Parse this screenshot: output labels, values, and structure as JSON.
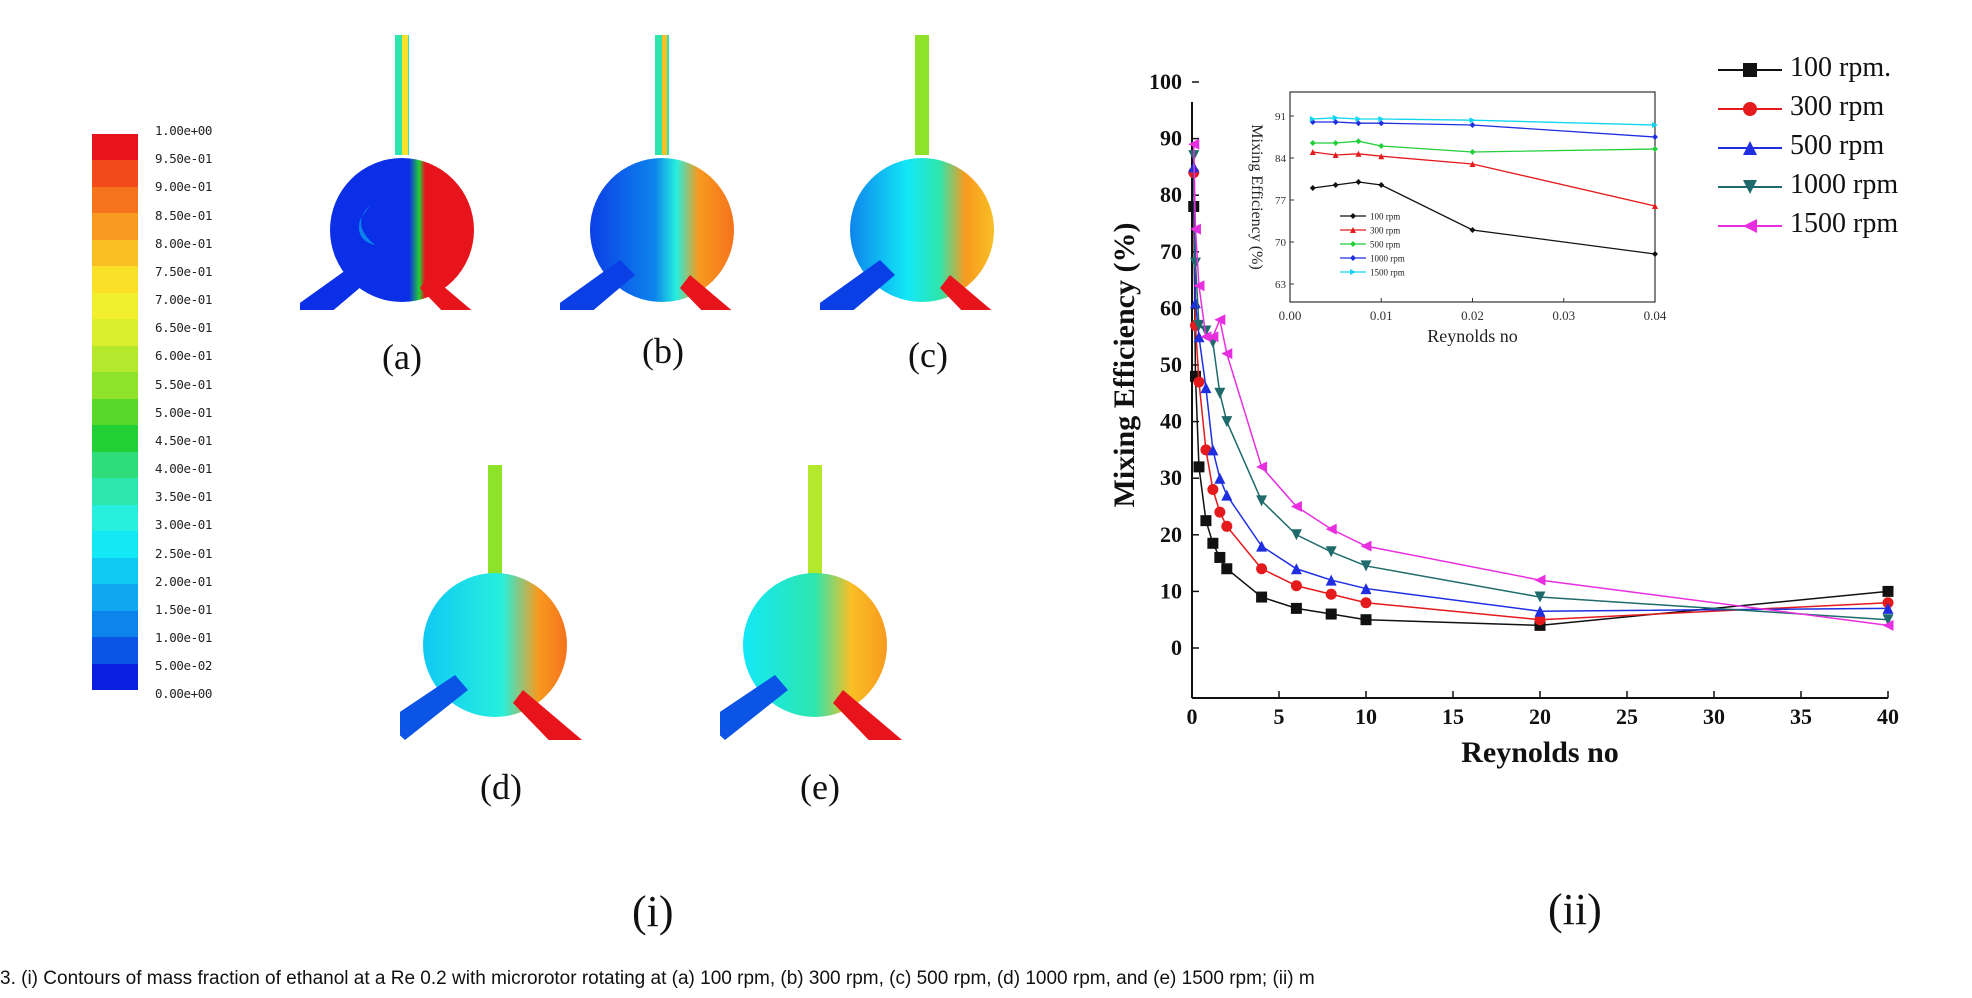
{
  "figure": {
    "colorbar_labels": [
      "1.00e+00",
      "9.50e-01",
      "9.00e-01",
      "8.50e-01",
      "8.00e-01",
      "7.50e-01",
      "7.00e-01",
      "6.50e-01",
      "6.00e-01",
      "5.50e-01",
      "5.00e-01",
      "4.50e-01",
      "4.00e-01",
      "3.50e-01",
      "3.00e-01",
      "2.50e-01",
      "2.00e-01",
      "1.50e-01",
      "1.00e-01",
      "5.00e-02",
      "0.00e+00"
    ],
    "colorbar_colors": [
      "#e8141b",
      "#f24a1a",
      "#f5731c",
      "#f79a1f",
      "#f9bf24",
      "#fbe02a",
      "#f2f02c",
      "#d9ee2c",
      "#b4e82c",
      "#8ee22a",
      "#58d82b",
      "#22cf34",
      "#2fdc7a",
      "#2de6ad",
      "#26efdd",
      "#12e8f6",
      "#10c9f3",
      "#0fa8f0",
      "#0d84ec",
      "#0b54e6",
      "#0a1fe0"
    ],
    "subplots": [
      "(a)",
      "(b)",
      "(c)",
      "(d)",
      "(e)"
    ],
    "panel_i": "(i)",
    "panel_ii": "(ii)",
    "caption": "3. (i) Contours of mass fraction of ethanol at a Re 0.2 with microrotor rotating at (a) 100 rpm, (b) 300 rpm, (c) 500 rpm, (d) 1000 rpm, and (e) 1500 rpm; (ii) m"
  },
  "chart_data": [
    {
      "type": "line",
      "xlabel": "Reynolds no",
      "ylabel": "Mixing Efficiency (%)",
      "xlim": [
        0,
        40
      ],
      "ylim": [
        0,
        100
      ],
      "xticks": [
        0,
        5,
        10,
        15,
        20,
        25,
        30,
        35,
        40
      ],
      "yticks": [
        0,
        10,
        20,
        30,
        40,
        50,
        60,
        70,
        80,
        90,
        100
      ],
      "legend_position": "top-right outside",
      "series": [
        {
          "name": "100 rpm.",
          "color": "#111111",
          "marker": "square",
          "x": [
            0.1,
            0.2,
            0.4,
            0.8,
            1.2,
            1.6,
            2,
            4,
            6,
            8,
            10,
            20,
            40
          ],
          "y": [
            78,
            48,
            32,
            22.5,
            18.5,
            16,
            14,
            9,
            7,
            6,
            5,
            4,
            10
          ]
        },
        {
          "name": "300 rpm",
          "color": "#e41a1c",
          "marker": "circle",
          "x": [
            0.1,
            0.2,
            0.4,
            0.8,
            1.2,
            1.6,
            2,
            4,
            6,
            8,
            10,
            20,
            40
          ],
          "y": [
            84,
            57,
            47,
            35,
            28,
            24,
            21.5,
            14,
            11,
            9.5,
            8,
            5,
            8
          ]
        },
        {
          "name": "500 rpm",
          "color": "#1f2fe0",
          "marker": "triangle-up",
          "x": [
            0.1,
            0.2,
            0.4,
            0.8,
            1.2,
            1.6,
            2,
            4,
            6,
            8,
            10,
            20,
            40
          ],
          "y": [
            85,
            61,
            55,
            46,
            35,
            30,
            27,
            18,
            14,
            12,
            10.5,
            6.5,
            7
          ]
        },
        {
          "name": "1000 rpm",
          "color": "#1f6b6b",
          "marker": "triangle-down",
          "x": [
            0.1,
            0.2,
            0.4,
            0.8,
            1.2,
            1.6,
            2,
            4,
            6,
            8,
            10,
            20,
            40
          ],
          "y": [
            87,
            68,
            57,
            56,
            54,
            45,
            40,
            26,
            20,
            17,
            14.5,
            9,
            5
          ]
        },
        {
          "name": "1500 rpm",
          "color": "#e82fe0",
          "marker": "triangle-left",
          "x": [
            0.1,
            0.2,
            0.4,
            0.8,
            1.2,
            1.6,
            2,
            4,
            6,
            8,
            10,
            20,
            40
          ],
          "y": [
            89,
            74,
            64,
            55,
            55,
            58,
            52,
            32,
            25,
            21,
            18,
            12,
            4
          ]
        }
      ]
    },
    {
      "type": "line",
      "xlabel": "Reynolds no",
      "ylabel": "Mixing Efficiency (%)",
      "xlim": [
        0.0,
        0.04
      ],
      "ylim": [
        60,
        95
      ],
      "xticks": [
        "0.00",
        "0.01",
        "0.02",
        "0.03",
        "0.04"
      ],
      "yticks": [
        63,
        70,
        77,
        84,
        91
      ],
      "legend_position": "bottom-left inside",
      "series": [
        {
          "name": "100 rpm",
          "color": "#111111",
          "marker": "diamond",
          "x": [
            0.0025,
            0.005,
            0.0075,
            0.01,
            0.02,
            0.04
          ],
          "y": [
            79,
            79.5,
            80,
            79.5,
            72,
            68
          ]
        },
        {
          "name": "300 rpm",
          "color": "#e41a1c",
          "marker": "triangle-up",
          "x": [
            0.0025,
            0.005,
            0.0075,
            0.01,
            0.02,
            0.04
          ],
          "y": [
            85,
            84.5,
            84.7,
            84.3,
            83,
            76
          ]
        },
        {
          "name": "500 rpm",
          "color": "#22d03a",
          "marker": "diamond",
          "x": [
            0.0025,
            0.005,
            0.0075,
            0.01,
            0.02,
            0.04
          ],
          "y": [
            86.5,
            86.5,
            86.8,
            86,
            85,
            85.5
          ]
        },
        {
          "name": "1000 rpm",
          "color": "#1f2fe0",
          "marker": "diamond",
          "x": [
            0.0025,
            0.005,
            0.0075,
            0.01,
            0.02,
            0.04
          ],
          "y": [
            90,
            90,
            89.8,
            89.8,
            89.5,
            87.5
          ]
        },
        {
          "name": "1500 rpm",
          "color": "#12d6f0",
          "marker": "triangle-right",
          "x": [
            0.0025,
            0.005,
            0.0075,
            0.01,
            0.02,
            0.04
          ],
          "y": [
            90.5,
            90.7,
            90.5,
            90.5,
            90.3,
            89.5
          ]
        }
      ]
    }
  ]
}
